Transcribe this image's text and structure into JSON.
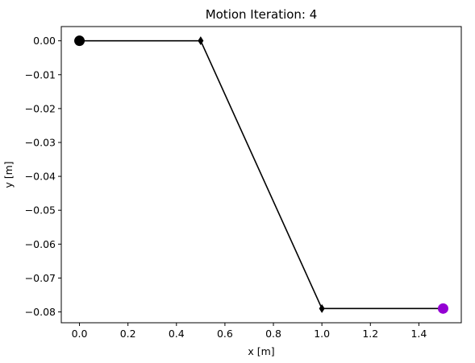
{
  "chart_data": {
    "type": "line",
    "title": "Motion Iteration: 4",
    "xlabel": "x [m]",
    "ylabel": "y [m]",
    "xlim": [
      -0.075,
      1.575
    ],
    "ylim": [
      -0.0832,
      0.0042
    ],
    "xticks": [
      0.0,
      0.2,
      0.4,
      0.6,
      0.8,
      1.0,
      1.2,
      1.4
    ],
    "xtick_labels": [
      "0.0",
      "0.2",
      "0.4",
      "0.6",
      "0.8",
      "1.0",
      "1.2",
      "1.4"
    ],
    "yticks": [
      0.0,
      -0.01,
      -0.02,
      -0.03,
      -0.04,
      -0.05,
      -0.06,
      -0.07,
      -0.08
    ],
    "ytick_labels": [
      "0.00",
      "−0.01",
      "−0.02",
      "−0.03",
      "−0.04",
      "−0.05",
      "−0.06",
      "−0.07",
      "−0.08"
    ],
    "grid": false,
    "series": [
      {
        "x": [
          0.0,
          0.5,
          1.0,
          1.5
        ],
        "y": [
          0.0,
          0.0,
          -0.079,
          -0.079
        ],
        "line_color": "#000000",
        "markers": [
          "base",
          "joint",
          "joint",
          "end-effector"
        ]
      }
    ],
    "marker_colors": {
      "base": "#000000",
      "joint": "#000000",
      "end_effector": "#9400d3"
    }
  }
}
